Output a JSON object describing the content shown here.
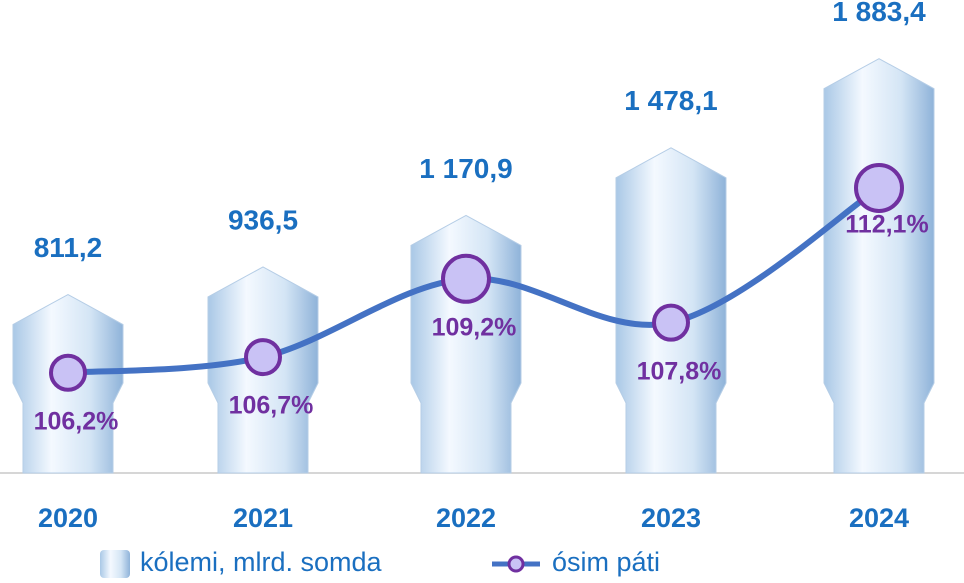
{
  "chart_data": {
    "type": "bar-line",
    "categories": [
      "2020",
      "2021",
      "2022",
      "2023",
      "2024"
    ],
    "series": [
      {
        "name": "kólemi, mlrd. somda",
        "type": "bar",
        "color": "#c6ddf0",
        "values": [
          811.2,
          936.5,
          1170.9,
          1478.1,
          1883.4
        ],
        "value_labels": [
          "811,2",
          "936,5",
          "1 170,9",
          "1 478,1",
          "1 883,4"
        ]
      },
      {
        "name": "ósim páti",
        "type": "line",
        "axis": "y2",
        "color": "#4472c4",
        "marker_color": "#7030a0",
        "values": [
          106.2,
          106.7,
          109.2,
          107.8,
          112.1
        ],
        "value_labels": [
          "106,2%",
          "106,7%",
          "109,2%",
          "107,8%",
          "112,1%"
        ]
      }
    ],
    "ylim": [
      0,
      2150
    ],
    "y2lim": [
      103,
      118.1
    ]
  }
}
